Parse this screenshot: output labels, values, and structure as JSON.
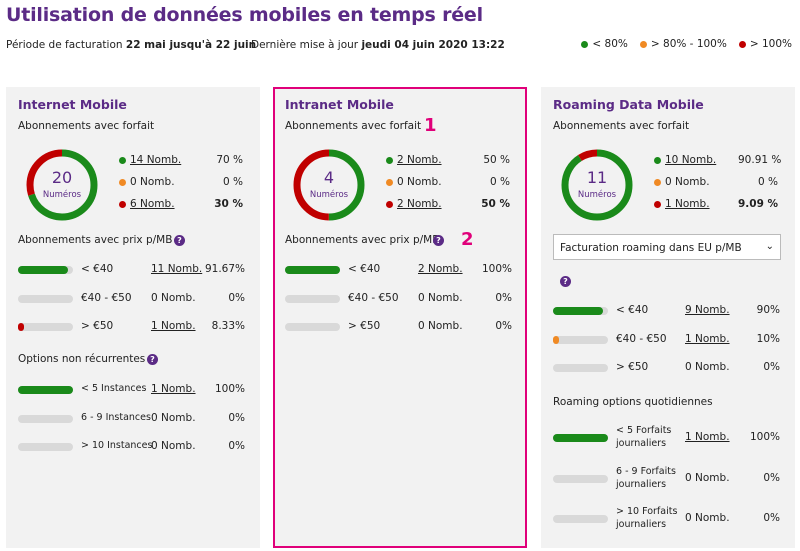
{
  "header": {
    "title": "Utilisation de données mobiles en temps réel",
    "period_label": "Période de facturation",
    "period_value": "22 mai jusqu'à 22 juin",
    "update_label": "Dernière mise à jour",
    "update_value": "jeudi 04 juin 2020 13:22"
  },
  "legend": [
    {
      "label": "< 80%",
      "color": "#1a8a1a"
    },
    {
      "label": "> 80% - 100%",
      "color": "#f08a24"
    },
    {
      "label": "> 100%",
      "color": "#c00000"
    }
  ],
  "colors": {
    "green": "#1a8a1a",
    "orange": "#f08a24",
    "red": "#c00000",
    "purple": "#5b2b86",
    "highlight": "#e0007a"
  },
  "annotations": [
    "1",
    "2"
  ],
  "cards": [
    {
      "title": "Internet Mobile",
      "subs_title": "Abonnements avec forfait",
      "donut": {
        "count": "20",
        "label": "Numéros",
        "green_fraction": 0.7,
        "orange_fraction": 0.0,
        "red_fraction": 0.3
      },
      "status_rows": [
        {
          "count": "14 Nomb.",
          "pct": "70 %",
          "linked": true,
          "bold": false
        },
        {
          "count": "0 Nomb.",
          "pct": "0 %",
          "linked": false,
          "bold": false
        },
        {
          "count": "6 Nomb.",
          "pct": "30 %",
          "linked": true,
          "bold": true
        }
      ],
      "price_title": "Abonnements avec prix p/MB",
      "price_rows": [
        {
          "label": "< €40",
          "count": "11 Nomb.",
          "pct": "91.67%",
          "fill": 0.9167,
          "color": "green",
          "linked": true
        },
        {
          "label": "€40 - €50",
          "count": "0 Nomb.",
          "pct": "0%",
          "fill": 0,
          "color": "orange",
          "linked": false
        },
        {
          "label": "> €50",
          "count": "1 Nomb.",
          "pct": "8.33%",
          "fill": 0.0833,
          "color": "red",
          "linked": true
        }
      ],
      "options_title": "Options non récurrentes",
      "options_rows": [
        {
          "label": "< 5 Instances",
          "count": "1 Nomb.",
          "pct": "100%",
          "fill": 1,
          "color": "green",
          "linked": true
        },
        {
          "label": "6 - 9 Instances",
          "count": "0 Nomb.",
          "pct": "0%",
          "fill": 0,
          "color": "orange",
          "linked": false
        },
        {
          "label": "> 10 Instances",
          "count": "0 Nomb.",
          "pct": "0%",
          "fill": 0,
          "color": "red",
          "linked": false
        }
      ]
    },
    {
      "title": "Intranet Mobile",
      "subs_title": "Abonnements avec forfait",
      "donut": {
        "count": "4",
        "label": "Numéros",
        "green_fraction": 0.5,
        "orange_fraction": 0.0,
        "red_fraction": 0.5
      },
      "status_rows": [
        {
          "count": "2 Nomb.",
          "pct": "50 %",
          "linked": true,
          "bold": false
        },
        {
          "count": "0 Nomb.",
          "pct": "0 %",
          "linked": false,
          "bold": false
        },
        {
          "count": "2 Nomb.",
          "pct": "50 %",
          "linked": true,
          "bold": true
        }
      ],
      "price_title": "Abonnements avec prix p/MB",
      "price_rows": [
        {
          "label": "< €40",
          "count": "2 Nomb.",
          "pct": "100%",
          "fill": 1,
          "color": "green",
          "linked": true
        },
        {
          "label": "€40 - €50",
          "count": "0 Nomb.",
          "pct": "0%",
          "fill": 0,
          "color": "orange",
          "linked": false
        },
        {
          "label": "> €50",
          "count": "0 Nomb.",
          "pct": "0%",
          "fill": 0,
          "color": "red",
          "linked": false
        }
      ]
    },
    {
      "title": "Roaming Data Mobile",
      "subs_title": "Abonnements avec forfait",
      "donut": {
        "count": "11",
        "label": "Numéros",
        "green_fraction": 0.9091,
        "orange_fraction": 0.0,
        "red_fraction": 0.0909
      },
      "status_rows": [
        {
          "count": "10 Nomb.",
          "pct": "90.91 %",
          "linked": true,
          "bold": false
        },
        {
          "count": "0 Nomb.",
          "pct": "0 %",
          "linked": false,
          "bold": false
        },
        {
          "count": "1 Nomb.",
          "pct": "9.09 %",
          "linked": true,
          "bold": true
        }
      ],
      "select_value": "Facturation roaming dans EU p/MB",
      "price_rows": [
        {
          "label": "< €40",
          "count": "9 Nomb.",
          "pct": "90%",
          "fill": 0.9,
          "color": "green",
          "linked": true
        },
        {
          "label": "€40 - €50",
          "count": "1 Nomb.",
          "pct": "10%",
          "fill": 0.1,
          "color": "orange",
          "linked": true
        },
        {
          "label": "> €50",
          "count": "0 Nomb.",
          "pct": "0%",
          "fill": 0,
          "color": "red",
          "linked": false
        }
      ],
      "options_title": "Roaming options quotidiennes",
      "options_rows": [
        {
          "label": "< 5 Forfaits journaliers",
          "count": "1 Nomb.",
          "pct": "100%",
          "fill": 1,
          "color": "green",
          "linked": true
        },
        {
          "label": "6 - 9 Forfaits journaliers",
          "count": "0 Nomb.",
          "pct": "0%",
          "fill": 0,
          "color": "orange",
          "linked": false
        },
        {
          "label": "> 10 Forfaits journaliers",
          "count": "0 Nomb.",
          "pct": "0%",
          "fill": 0,
          "color": "red",
          "linked": false
        }
      ]
    }
  ]
}
